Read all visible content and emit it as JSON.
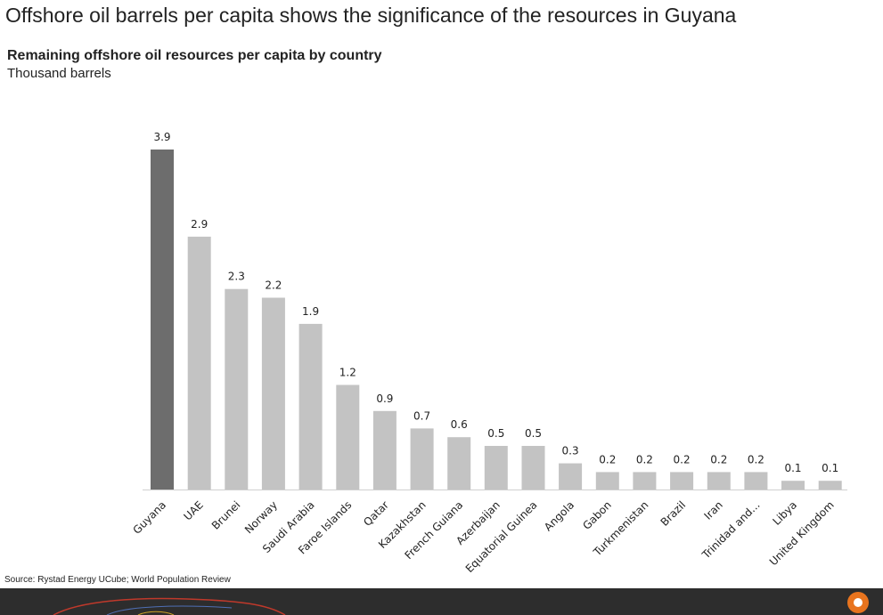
{
  "slide": {
    "title": "Offshore oil barrels per capita shows the significance of the resources in Guyana"
  },
  "chart_data": {
    "type": "bar",
    "title": "Remaining offshore oil resources per capita by country",
    "subtitle": "Thousand barrels",
    "categories": [
      "Guyana",
      "UAE",
      "Brunei",
      "Norway",
      "Saudi Arabia",
      "Faroe Islands",
      "Qatar",
      "Kazakhstan",
      "French Guiana",
      "Azerbaijan",
      "Equatorial Guinea",
      "Angola",
      "Gabon",
      "Turkmenistan",
      "Brazil",
      "Iran",
      "Trinidad and...",
      "Libya",
      "United Kingdom"
    ],
    "values": [
      3.9,
      2.9,
      2.3,
      2.2,
      1.9,
      1.2,
      0.9,
      0.7,
      0.6,
      0.5,
      0.5,
      0.3,
      0.2,
      0.2,
      0.2,
      0.2,
      0.2,
      0.1,
      0.1
    ],
    "data_labels": [
      "3.9",
      "2.9",
      "2.3",
      "2.2",
      "1.9",
      "1.2",
      "0.9",
      "0.7",
      "0.6",
      "0.5",
      "0.5",
      "0.3",
      "0.2",
      "0.2",
      "0.2",
      "0.2",
      "0.2",
      "0.1",
      "0.1"
    ],
    "highlight_category": "Guyana",
    "ylim": [
      0,
      4
    ],
    "grid": false,
    "legend": "none",
    "colors": {
      "highlight": "#6d6d6d",
      "default": "#c3c3c3",
      "axis": "#d0d0d0",
      "label": "#222222"
    }
  },
  "source": "Source: Rystad Energy UCube;  World Population Review",
  "footer": {
    "background": "#2d2d2d",
    "logo": "rystad-logo-icon"
  }
}
